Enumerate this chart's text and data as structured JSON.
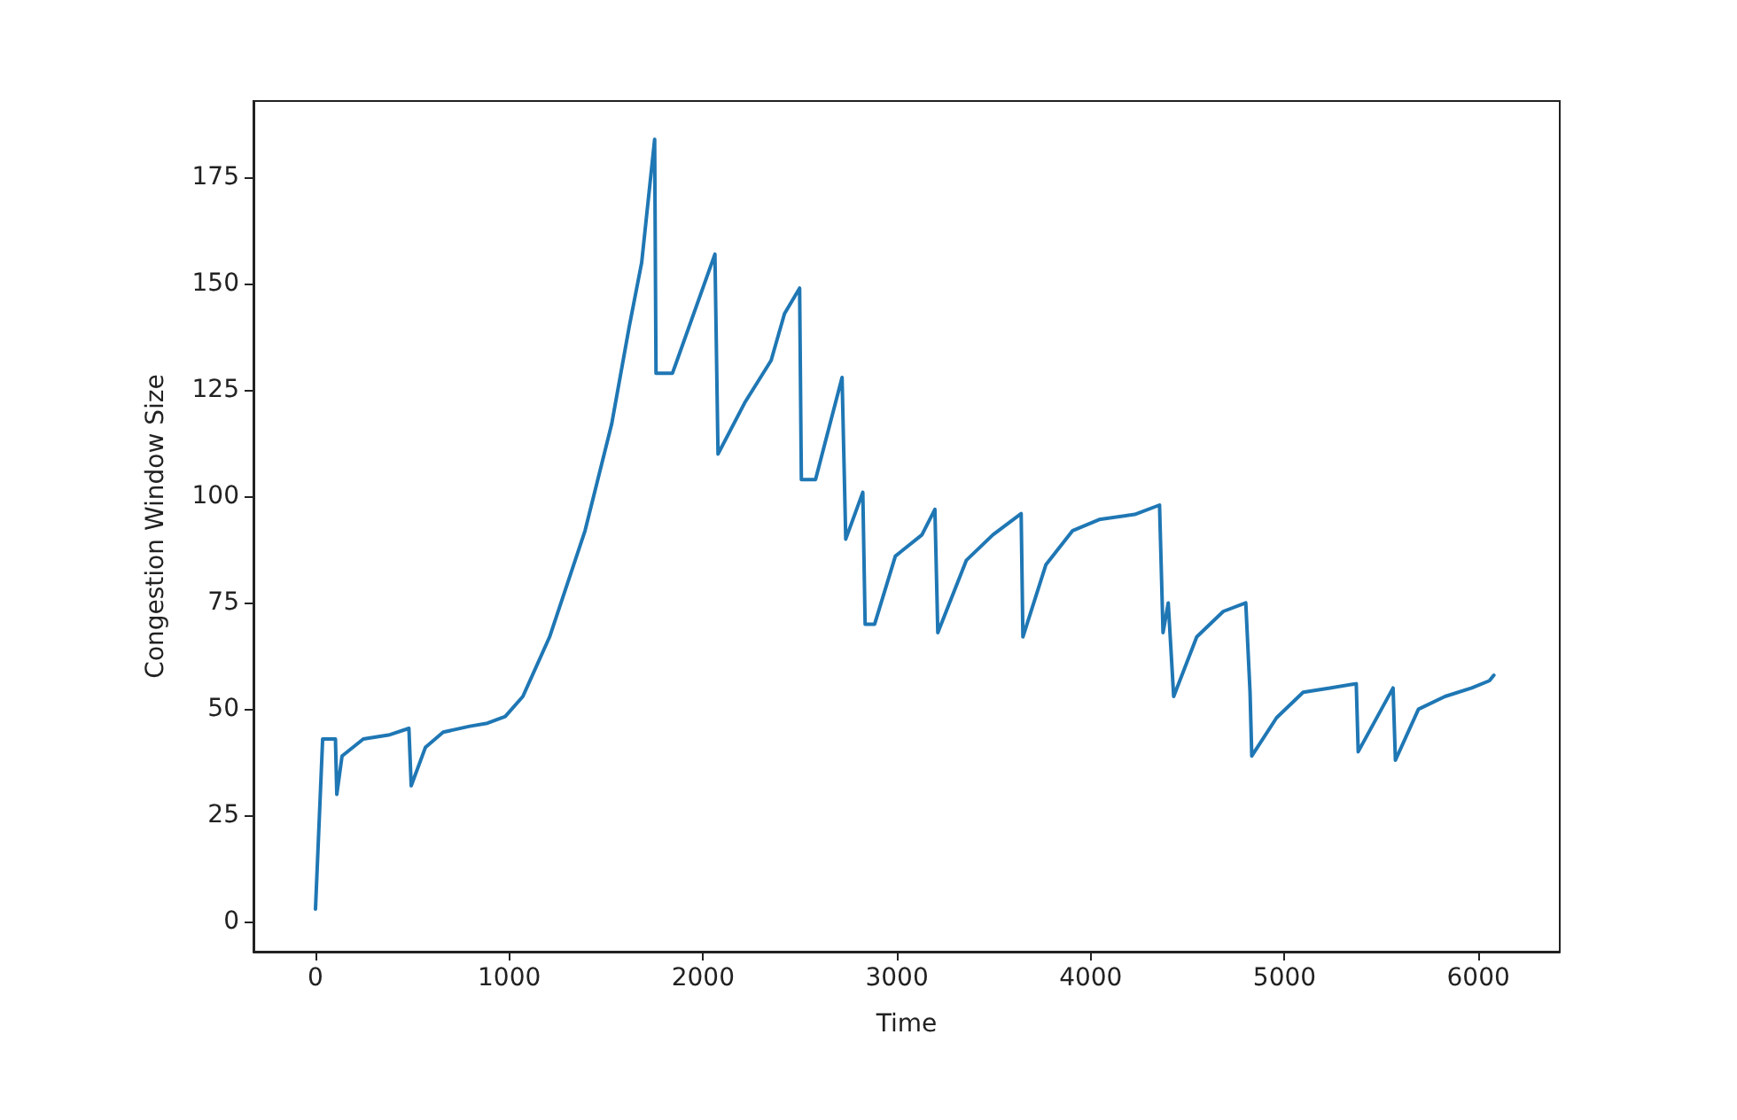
{
  "chart_data": {
    "type": "line",
    "xlabel": "Time",
    "ylabel": "Congestion Window Size",
    "xlim": [
      -320,
      6420
    ],
    "xticks": [
      0,
      1000,
      2000,
      3000,
      4000,
      5000,
      6000
    ],
    "ylim": [
      -7,
      193
    ],
    "yticks": [
      0,
      25,
      50,
      75,
      100,
      125,
      150,
      175
    ],
    "grid": false,
    "marker": "none",
    "line_style": "solid",
    "series": [
      {
        "color": "#1f77b4",
        "x": [
          0,
          37,
          103,
          110,
          137,
          247,
          384,
          482,
          494,
          567,
          659,
          796,
          887,
          979,
          1070,
          1208,
          1391,
          1528,
          1619,
          1683,
          1750,
          1757,
          1842,
          2061,
          2077,
          2214,
          2351,
          2420,
          2498,
          2507,
          2580,
          2717,
          2736,
          2824,
          2836,
          2885,
          2992,
          3129,
          3196,
          3211,
          3358,
          3495,
          3641,
          3650,
          3769,
          3907,
          4044,
          4227,
          4355,
          4373,
          4400,
          4428,
          4547,
          4684,
          4800,
          4822,
          4831,
          4959,
          5096,
          5234,
          5370,
          5380,
          5560,
          5572,
          5691,
          5828,
          5966,
          6057,
          6080
        ],
        "values": [
          3,
          43,
          43,
          30,
          39,
          43,
          44,
          45.5,
          32,
          41,
          44.6,
          46,
          46.7,
          48.3,
          53,
          67,
          92,
          117,
          140,
          155,
          184,
          129,
          129,
          157,
          110,
          122,
          132,
          143,
          149,
          104,
          104,
          128,
          90,
          101,
          70,
          70,
          86,
          91,
          97,
          68,
          85,
          91,
          96,
          67,
          84,
          92,
          94.6,
          95.8,
          98,
          68,
          75,
          53,
          67,
          73,
          75,
          54,
          39,
          48,
          54,
          55,
          56,
          40,
          55,
          38,
          50,
          53,
          55,
          56.7,
          58
        ]
      }
    ]
  }
}
